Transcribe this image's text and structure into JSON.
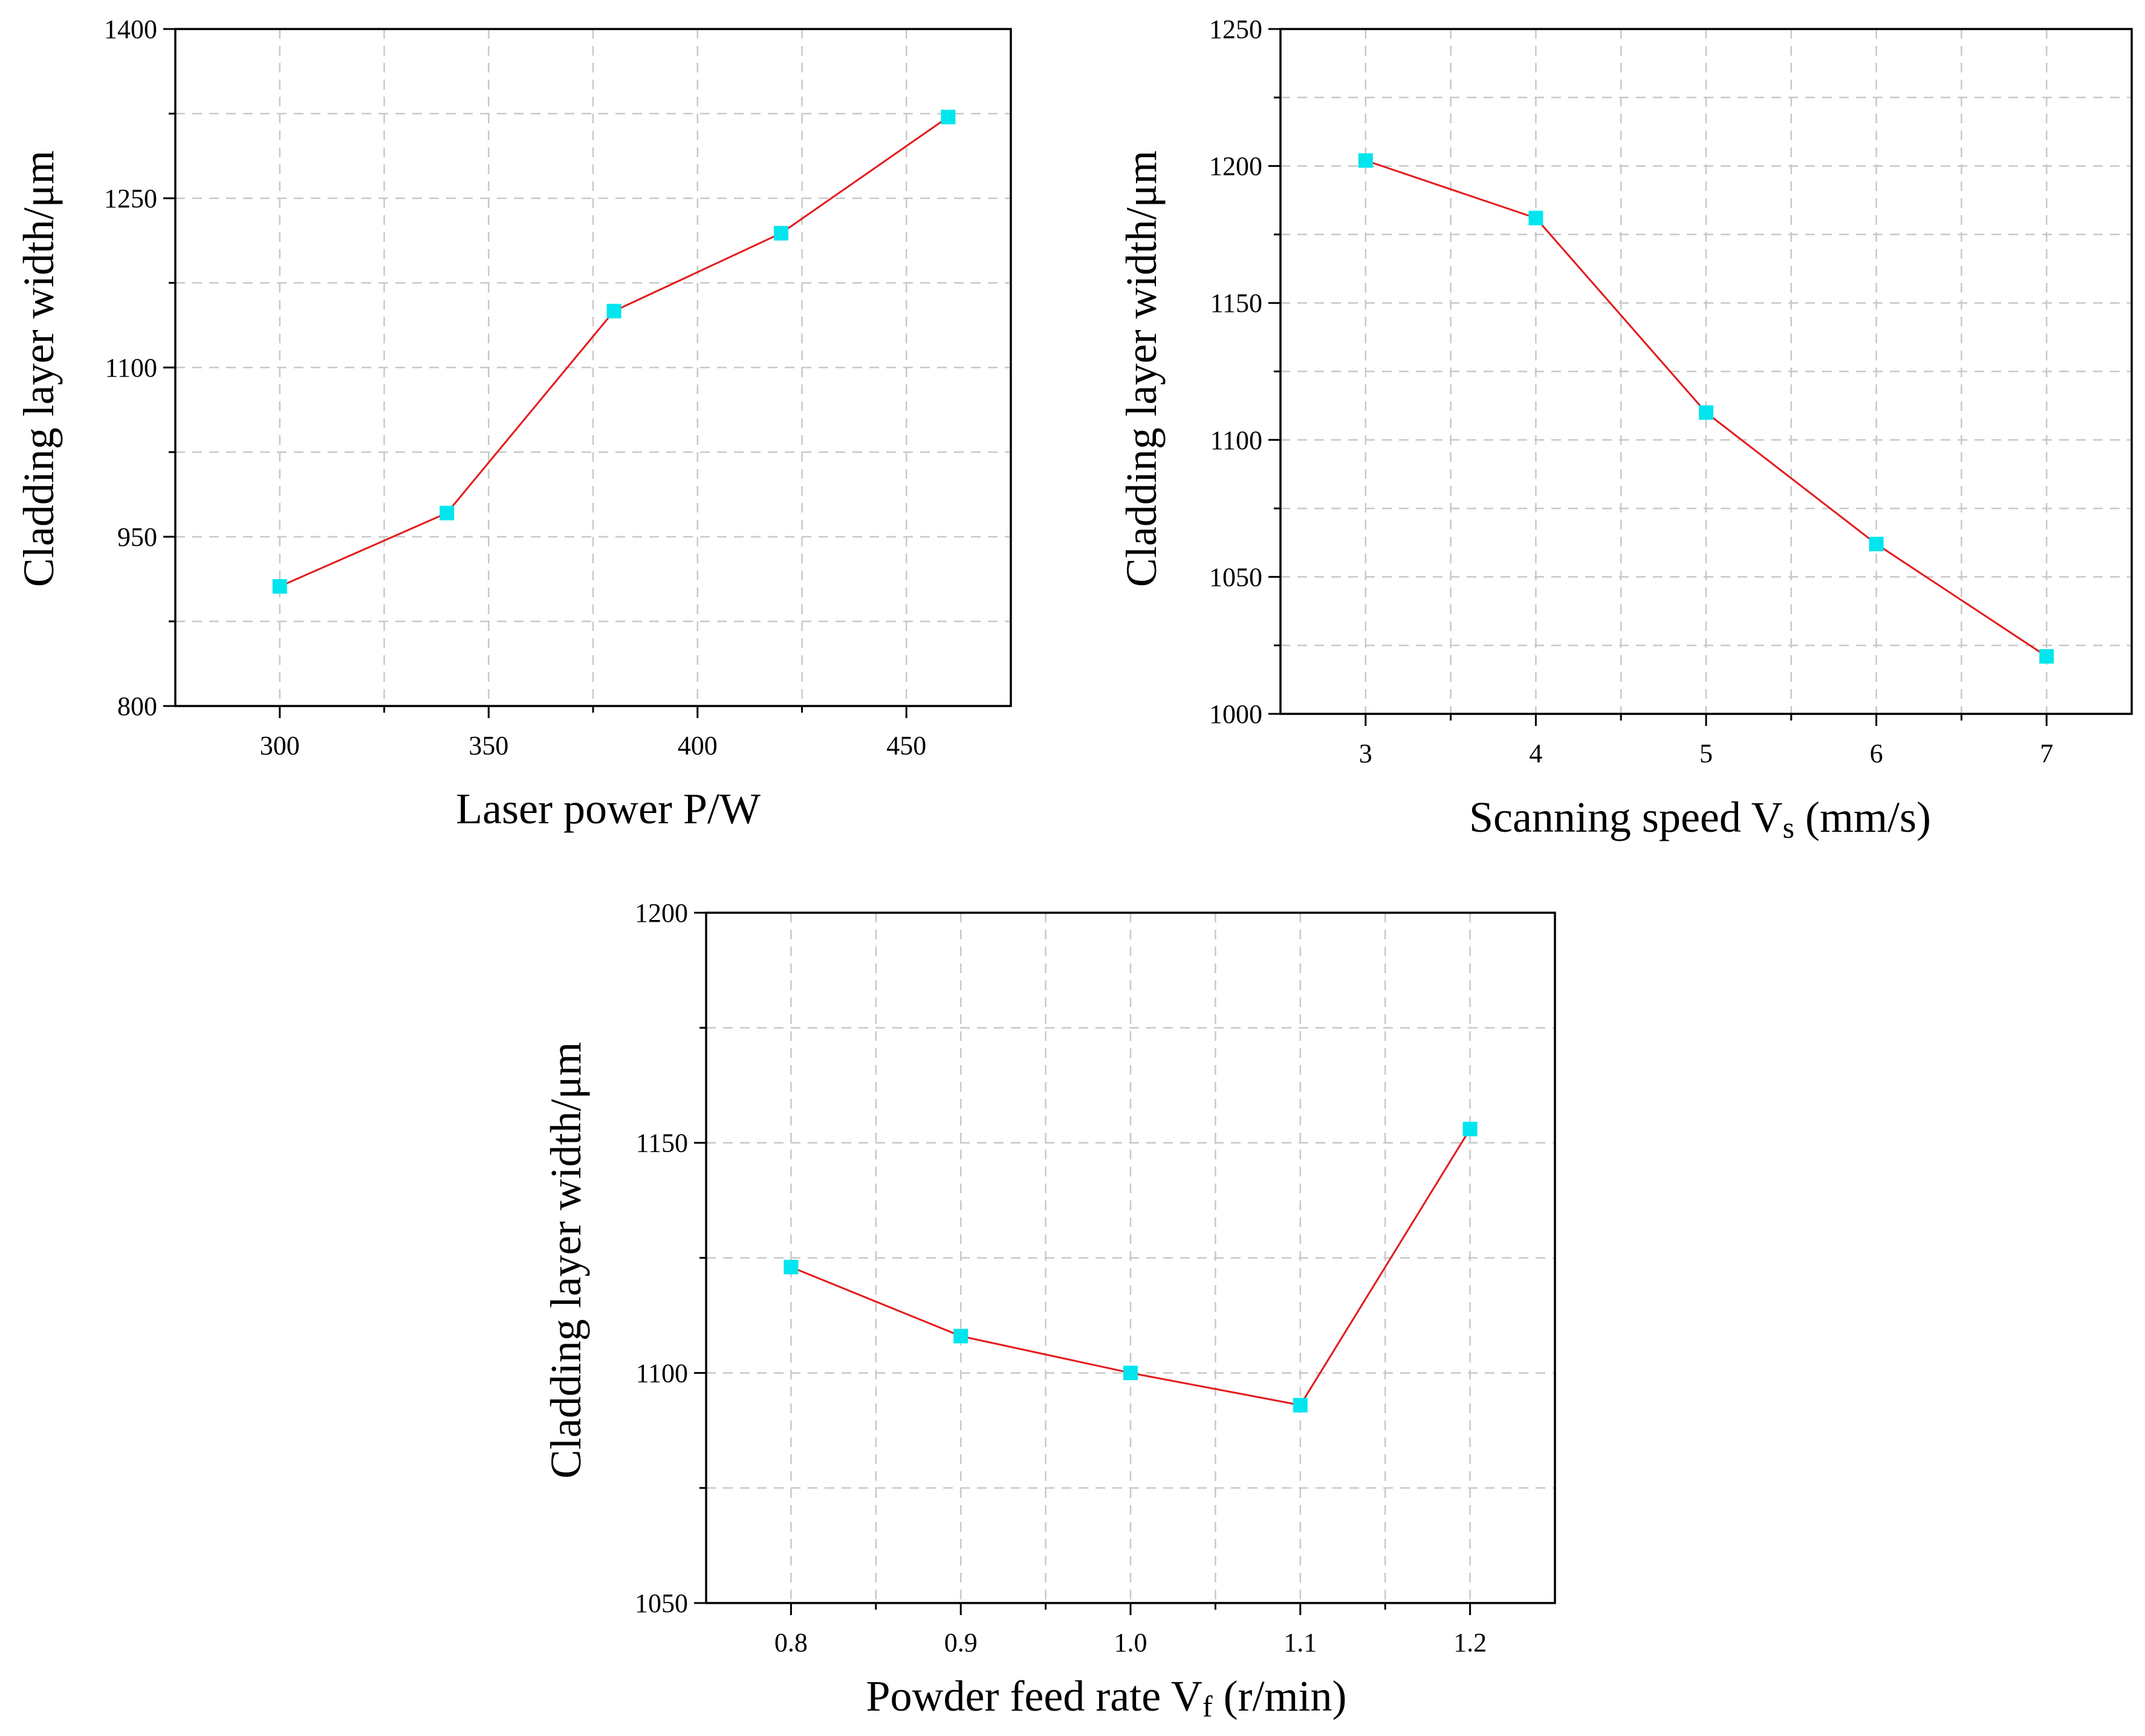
{
  "colors": {
    "line": "#e31a1c",
    "marker": "#00e5ee",
    "grid": "#c8c8c8",
    "axis": "#000000"
  },
  "chart_data": [
    {
      "type": "line",
      "title": "",
      "xlabel": "Laser power P/W",
      "ylabel": "Cladding layer width/μm",
      "x": [
        300,
        340,
        380,
        420,
        460
      ],
      "values": [
        906,
        971,
        1150,
        1219,
        1322
      ],
      "xlim": [
        275,
        475
      ],
      "ylim": [
        800,
        1400
      ],
      "xticks": [
        300,
        350,
        400,
        450
      ],
      "xtick_labels": [
        "300",
        "350",
        "400",
        "450"
      ],
      "yticks": [
        800,
        950,
        1100,
        1250,
        1400
      ],
      "ytick_labels": [
        "800",
        "950",
        "1100",
        "1250",
        "1400"
      ],
      "grid": true,
      "legend": "none"
    },
    {
      "type": "line",
      "title": "",
      "xlabel": "Scanning speed V",
      "xlabel_sub": "s",
      "xlabel_suffix": " (mm/s)",
      "ylabel": "Cladding layer width/μm",
      "x": [
        3,
        4,
        5,
        6,
        7
      ],
      "values": [
        1202,
        1181,
        1110,
        1062,
        1021
      ],
      "xlim": [
        2.5,
        7.5
      ],
      "ylim": [
        1000,
        1250
      ],
      "xticks": [
        3,
        4,
        5,
        6,
        7
      ],
      "xtick_labels": [
        "3",
        "4",
        "5",
        "6",
        "7"
      ],
      "yticks": [
        1000,
        1050,
        1100,
        1150,
        1200,
        1250
      ],
      "ytick_labels": [
        "1000",
        "1050",
        "1100",
        "1150",
        "1200",
        "1250"
      ],
      "grid": true,
      "legend": "none"
    },
    {
      "type": "line",
      "title": "",
      "xlabel": "Powder feed rate V",
      "xlabel_sub": "f",
      "xlabel_suffix": " (r/min)",
      "ylabel": "Cladding layer width/μm",
      "x": [
        0.8,
        0.9,
        1.0,
        1.1,
        1.2
      ],
      "values": [
        1123,
        1108,
        1100,
        1093,
        1153
      ],
      "xlim": [
        0.75,
        1.25
      ],
      "ylim": [
        1050,
        1200
      ],
      "xticks": [
        0.8,
        0.9,
        1.0,
        1.1,
        1.2
      ],
      "xtick_labels": [
        "0.8",
        "0.9",
        "1.0",
        "1.1",
        "1.2"
      ],
      "yticks": [
        1050,
        1100,
        1150,
        1200
      ],
      "ytick_labels": [
        "1050",
        "1100",
        "1150",
        "1200"
      ],
      "grid": true,
      "legend": "none"
    }
  ]
}
